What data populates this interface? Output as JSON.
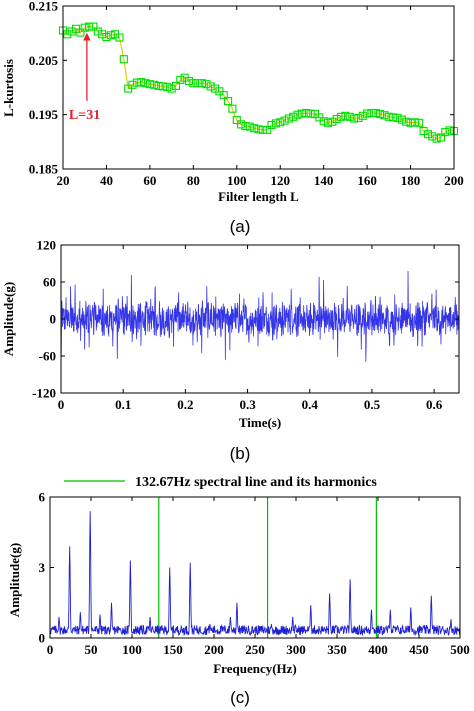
{
  "chart_data": [
    {
      "id": "a",
      "type": "line",
      "caption": "(a)",
      "xlabel": "Filter length L",
      "ylabel": "L-kurtosis",
      "xlim": [
        20,
        200
      ],
      "ylim": [
        0.185,
        0.215
      ],
      "xticks": [
        20,
        40,
        60,
        80,
        100,
        120,
        140,
        160,
        180,
        200
      ],
      "yticks": [
        0.185,
        0.195,
        0.205,
        0.215
      ],
      "ytick_labels": [
        "0.185",
        "0.195",
        "0.205",
        "0.215"
      ],
      "grid": false,
      "series": [
        {
          "color": "#00dd00",
          "marker": "square",
          "points": [
            [
              20,
              0.2105
            ],
            [
              22,
              0.2098
            ],
            [
              24,
              0.2103
            ],
            [
              26,
              0.2108
            ],
            [
              28,
              0.2101
            ],
            [
              30,
              0.211
            ],
            [
              32,
              0.2112
            ],
            [
              34,
              0.2112
            ],
            [
              36,
              0.2103
            ],
            [
              38,
              0.2098
            ],
            [
              40,
              0.2093
            ],
            [
              42,
              0.2096
            ],
            [
              44,
              0.2098
            ],
            [
              46,
              0.2092
            ],
            [
              48,
              0.2052
            ],
            [
              50,
              0.1998
            ],
            [
              52,
              0.2005
            ],
            [
              54,
              0.2009
            ],
            [
              56,
              0.201
            ],
            [
              58,
              0.2008
            ],
            [
              60,
              0.2006
            ],
            [
              62,
              0.2005
            ],
            [
              64,
              0.2003
            ],
            [
              66,
              0.2002
            ],
            [
              68,
              0.2001
            ],
            [
              70,
              0.1998
            ],
            [
              72,
              0.2003
            ],
            [
              74,
              0.2014
            ],
            [
              76,
              0.2018
            ],
            [
              78,
              0.2012
            ],
            [
              80,
              0.2008
            ],
            [
              82,
              0.2008
            ],
            [
              84,
              0.2008
            ],
            [
              86,
              0.2006
            ],
            [
              88,
              0.2002
            ],
            [
              90,
              0.1998
            ],
            [
              92,
              0.1993
            ],
            [
              94,
              0.1986
            ],
            [
              96,
              0.1975
            ],
            [
              98,
              0.1961
            ],
            [
              100,
              0.194
            ],
            [
              102,
              0.1932
            ],
            [
              104,
              0.1929
            ],
            [
              106,
              0.1928
            ],
            [
              108,
              0.1925
            ],
            [
              110,
              0.1923
            ],
            [
              112,
              0.1922
            ],
            [
              114,
              0.1922
            ],
            [
              116,
              0.1931
            ],
            [
              118,
              0.1934
            ],
            [
              120,
              0.1936
            ],
            [
              122,
              0.1939
            ],
            [
              124,
              0.1943
            ],
            [
              126,
              0.1946
            ],
            [
              128,
              0.195
            ],
            [
              130,
              0.1952
            ],
            [
              132,
              0.1953
            ],
            [
              134,
              0.1952
            ],
            [
              136,
              0.1951
            ],
            [
              138,
              0.1945
            ],
            [
              140,
              0.1938
            ],
            [
              142,
              0.1935
            ],
            [
              144,
              0.1937
            ],
            [
              146,
              0.1942
            ],
            [
              148,
              0.1946
            ],
            [
              150,
              0.1948
            ],
            [
              152,
              0.1946
            ],
            [
              154,
              0.1943
            ],
            [
              156,
              0.1944
            ],
            [
              158,
              0.1948
            ],
            [
              160,
              0.1952
            ],
            [
              162,
              0.1953
            ],
            [
              164,
              0.1953
            ],
            [
              166,
              0.1951
            ],
            [
              168,
              0.1949
            ],
            [
              170,
              0.1946
            ],
            [
              172,
              0.1945
            ],
            [
              174,
              0.1944
            ],
            [
              176,
              0.1941
            ],
            [
              178,
              0.1937
            ],
            [
              180,
              0.1935
            ],
            [
              182,
              0.1936
            ],
            [
              184,
              0.1935
            ],
            [
              186,
              0.192
            ],
            [
              188,
              0.1914
            ],
            [
              190,
              0.191
            ],
            [
              192,
              0.1906
            ],
            [
              194,
              0.1908
            ],
            [
              196,
              0.1918
            ],
            [
              198,
              0.1921
            ],
            [
              200,
              0.192
            ]
          ]
        }
      ],
      "annotations": [
        {
          "text": "L=31",
          "x": 31,
          "y": 0.2108,
          "arrow_color": "#e8202a"
        }
      ]
    },
    {
      "id": "b",
      "type": "line",
      "caption": "(b)",
      "xlabel": "Time(s)",
      "ylabel": "Amplitude(g)",
      "xlim": [
        0,
        0.64
      ],
      "ylim": [
        -120,
        120
      ],
      "xticks": [
        0,
        0.1,
        0.2,
        0.3,
        0.4,
        0.5,
        0.6
      ],
      "yticks": [
        -120,
        -60,
        0,
        60,
        120
      ],
      "grid": false,
      "series": [
        {
          "color": "#3535e8",
          "signal": {
            "duration": 0.64,
            "sample_count": 1500,
            "noise_amplitude": 28,
            "impulse_period": 0.00754,
            "impulse_peaks": [
              95,
              100,
              90,
              85,
              95,
              70,
              85,
              100,
              85,
              75,
              110,
              85,
              80,
              95,
              75,
              90
            ]
          }
        }
      ]
    },
    {
      "id": "c",
      "type": "line",
      "caption": "(c)",
      "xlabel": "Frequency(Hz)",
      "ylabel": "Amplitude(g)",
      "xlim": [
        0,
        500
      ],
      "ylim": [
        0,
        6
      ],
      "xticks": [
        0,
        50,
        100,
        150,
        200,
        250,
        300,
        350,
        400,
        450,
        500
      ],
      "yticks": [
        0,
        3,
        6
      ],
      "grid": false,
      "legend": {
        "placement": "top",
        "entries": [
          {
            "name": "132.67Hz spectral line and its harmonics",
            "color": "#00c000"
          }
        ]
      },
      "vlines": [
        132.67,
        265.34,
        398.01
      ],
      "series": [
        {
          "color": "#2020d0",
          "noise_floor": 0.45,
          "peaks": [
            [
              11,
              0.9
            ],
            [
              24,
              3.9
            ],
            [
              37,
              1.1
            ],
            [
              49,
              5.4
            ],
            [
              61,
              1.0
            ],
            [
              75,
              1.5
            ],
            [
              98,
              3.3
            ],
            [
              122,
              0.9
            ],
            [
              146,
              3.0
            ],
            [
              171,
              3.2
            ],
            [
              195,
              0.6
            ],
            [
              220,
              0.9
            ],
            [
              228,
              1.5
            ],
            [
              270,
              0.6
            ],
            [
              296,
              0.9
            ],
            [
              318,
              1.4
            ],
            [
              341,
              1.9
            ],
            [
              366,
              2.5
            ],
            [
              392,
              1.2
            ],
            [
              415,
              1.2
            ],
            [
              440,
              1.3
            ],
            [
              465,
              1.8
            ],
            [
              489,
              0.8
            ]
          ]
        }
      ]
    }
  ]
}
